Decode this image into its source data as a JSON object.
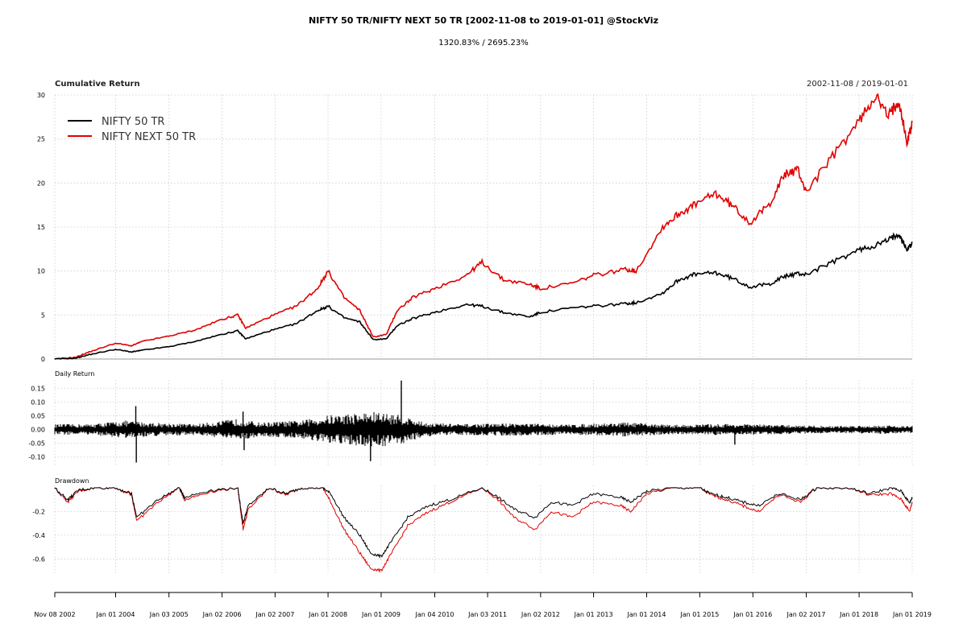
{
  "header": {
    "title": "NIFTY 50 TR/NIFTY NEXT 50 TR [2002-11-08 to 2019-01-01] @StockViz",
    "subtitle": "1320.83% / 2695.23%"
  },
  "chart_data": [
    {
      "type": "line",
      "title": "Cumulative Return",
      "date_range": "2002-11-08 / 2019-01-01",
      "ylim": [
        0,
        30
      ],
      "yticks": [
        0,
        5,
        10,
        15,
        20,
        25,
        30
      ],
      "grid": true,
      "legend_position": "top-left",
      "x": [
        2002.85,
        2003.25,
        2003.5,
        2004.0,
        2004.3,
        2004.5,
        2005.0,
        2005.5,
        2006.0,
        2006.3,
        2006.45,
        2006.9,
        2007.4,
        2007.8,
        2008.0,
        2008.3,
        2008.6,
        2008.85,
        2009.1,
        2009.3,
        2009.6,
        2010.0,
        2010.6,
        2010.9,
        2011.3,
        2011.8,
        2012.0,
        2012.6,
        2013.0,
        2013.6,
        2013.8,
        2014.3,
        2014.6,
        2014.9,
        2015.3,
        2015.6,
        2015.95,
        2016.3,
        2016.6,
        2016.85,
        2017.0,
        2017.5,
        2018.0,
        2018.3,
        2018.55,
        2018.75,
        2018.9,
        2019.0
      ],
      "series": [
        {
          "name": "NIFTY 50 TR",
          "color": "#000000",
          "values": [
            0.0,
            0.1,
            0.5,
            1.1,
            0.8,
            1.0,
            1.4,
            2.0,
            2.8,
            3.2,
            2.3,
            3.2,
            4.0,
            5.5,
            6.0,
            4.7,
            4.2,
            2.2,
            2.3,
            3.8,
            4.6,
            5.3,
            6.2,
            6.0,
            5.3,
            4.8,
            5.3,
            5.8,
            6.0,
            6.3,
            6.4,
            7.5,
            9.0,
            9.6,
            9.8,
            9.2,
            8.2,
            8.5,
            9.4,
            9.7,
            9.6,
            11.0,
            12.4,
            12.9,
            13.5,
            14.3,
            12.4,
            13.2
          ]
        },
        {
          "name": "NIFTY NEXT 50 TR",
          "color": "#e00000",
          "values": [
            0.0,
            0.2,
            0.8,
            1.8,
            1.5,
            2.0,
            2.6,
            3.3,
            4.5,
            5.0,
            3.5,
            4.8,
            6.0,
            8.0,
            10.0,
            7.0,
            5.5,
            2.5,
            2.8,
            5.5,
            7.0,
            8.0,
            9.5,
            11.0,
            9.0,
            8.5,
            8.0,
            8.6,
            9.5,
            10.2,
            10.0,
            15.0,
            16.5,
            17.5,
            18.8,
            17.5,
            15.5,
            17.5,
            21.0,
            21.5,
            19.0,
            23.0,
            27.0,
            30.0,
            27.5,
            29.5,
            24.5,
            26.9
          ]
        }
      ]
    },
    {
      "type": "bar",
      "title": "Daily Return",
      "ylim": [
        -0.13,
        0.18
      ],
      "yticks": [
        -0.1,
        -0.05,
        0.0,
        0.05,
        0.1,
        0.15
      ],
      "ytick_labels": [
        "-0.10",
        "-0.05",
        "0.00",
        "0.05",
        "0.10",
        "0.15"
      ],
      "series": [
        {
          "name": "NIFTY 50 TR",
          "color": "#000000",
          "extremes": [
            {
              "x": 2004.38,
              "value": 0.085
            },
            {
              "x": 2004.39,
              "value": -0.12
            },
            {
              "x": 2009.38,
              "value": 0.178
            },
            {
              "x": 2008.8,
              "value": -0.115
            },
            {
              "x": 2015.66,
              "value": -0.055
            },
            {
              "x": 2006.4,
              "value": 0.065
            },
            {
              "x": 2006.42,
              "value": -0.075
            }
          ]
        }
      ]
    },
    {
      "type": "line",
      "title": "Drawdown",
      "ylim": [
        -0.72,
        0.02
      ],
      "yticks": [
        -0.6,
        -0.4,
        -0.2
      ],
      "ytick_labels": [
        "-0.6",
        "-0.4",
        "-0.2"
      ],
      "x": [
        2002.85,
        2003.1,
        2003.3,
        2003.6,
        2004.0,
        2004.3,
        2004.4,
        2004.8,
        2005.2,
        2005.3,
        2005.8,
        2006.3,
        2006.4,
        2006.5,
        2006.9,
        2007.2,
        2007.5,
        2007.9,
        2008.05,
        2008.3,
        2008.6,
        2008.8,
        2009.0,
        2009.2,
        2009.5,
        2009.9,
        2010.3,
        2010.9,
        2011.2,
        2011.5,
        2011.9,
        2012.2,
        2012.6,
        2013.0,
        2013.5,
        2013.7,
        2014.0,
        2014.5,
        2015.0,
        2015.2,
        2015.5,
        2015.8,
        2016.1,
        2016.5,
        2016.9,
        2017.2,
        2017.8,
        2018.2,
        2018.6,
        2018.8,
        2018.95,
        2019.0
      ],
      "series": [
        {
          "name": "NIFTY 50 TR",
          "color": "#000000",
          "values": [
            0.0,
            -0.1,
            -0.02,
            0.0,
            0.0,
            -0.05,
            -0.25,
            -0.1,
            0.0,
            -0.08,
            -0.02,
            0.0,
            -0.3,
            -0.15,
            0.0,
            -0.05,
            0.0,
            0.0,
            -0.05,
            -0.25,
            -0.4,
            -0.55,
            -0.58,
            -0.45,
            -0.25,
            -0.15,
            -0.1,
            0.0,
            -0.08,
            -0.18,
            -0.25,
            -0.12,
            -0.15,
            -0.05,
            -0.08,
            -0.12,
            -0.03,
            0.0,
            0.0,
            -0.05,
            -0.08,
            -0.12,
            -0.15,
            -0.05,
            -0.1,
            0.0,
            0.0,
            -0.05,
            0.0,
            -0.03,
            -0.13,
            -0.08
          ]
        },
        {
          "name": "NIFTY NEXT 50 TR",
          "color": "#e00000",
          "values": [
            0.0,
            -0.12,
            -0.03,
            0.0,
            0.0,
            -0.06,
            -0.28,
            -0.12,
            0.0,
            -0.1,
            -0.03,
            0.0,
            -0.35,
            -0.18,
            0.0,
            -0.06,
            0.0,
            0.0,
            -0.12,
            -0.35,
            -0.55,
            -0.68,
            -0.7,
            -0.55,
            -0.32,
            -0.2,
            -0.12,
            0.0,
            -0.1,
            -0.25,
            -0.35,
            -0.2,
            -0.25,
            -0.12,
            -0.15,
            -0.2,
            -0.05,
            0.0,
            0.0,
            -0.06,
            -0.1,
            -0.15,
            -0.2,
            -0.06,
            -0.12,
            0.0,
            0.0,
            -0.06,
            -0.05,
            -0.1,
            -0.2,
            -0.12
          ]
        }
      ]
    }
  ],
  "x_axis": {
    "ticks": [
      {
        "x": 2002.855,
        "label": "Nov 08 2002"
      },
      {
        "x": 2004.0,
        "label": "Jan 01 2004"
      },
      {
        "x": 2005.005,
        "label": "Jan 03 2005"
      },
      {
        "x": 2006.005,
        "label": "Jan 02 2006"
      },
      {
        "x": 2007.003,
        "label": "Jan 02 2007"
      },
      {
        "x": 2008.0,
        "label": "Jan 01 2008"
      },
      {
        "x": 2009.0,
        "label": "Jan 01 2009"
      },
      {
        "x": 2010.01,
        "label": "Jan 04 2010"
      },
      {
        "x": 2011.005,
        "label": "Jan 03 2011"
      },
      {
        "x": 2012.003,
        "label": "Jan 02 2012"
      },
      {
        "x": 2013.0,
        "label": "Jan 01 2013"
      },
      {
        "x": 2014.0,
        "label": "Jan 01 2014"
      },
      {
        "x": 2015.0,
        "label": "Jan 01 2015"
      },
      {
        "x": 2016.0,
        "label": "Jan 01 2016"
      },
      {
        "x": 2017.005,
        "label": "Jan 02 2017"
      },
      {
        "x": 2018.0,
        "label": "Jan 01 2018"
      },
      {
        "x": 2019.0,
        "label": "Jan 01 2019"
      }
    ]
  }
}
